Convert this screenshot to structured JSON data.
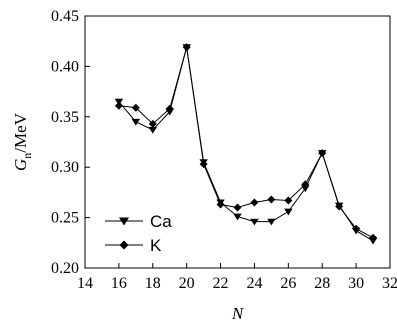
{
  "chart_data": {
    "type": "line",
    "x": [
      16,
      17,
      18,
      19,
      20,
      21,
      22,
      23,
      24,
      25,
      26,
      27,
      28,
      29,
      30,
      31
    ],
    "series": [
      {
        "name": "Ca",
        "marker": "triangle-down",
        "values": [
          0.365,
          0.345,
          0.337,
          0.355,
          0.419,
          0.305,
          0.265,
          0.251,
          0.246,
          0.246,
          0.256,
          0.279,
          0.314,
          0.262,
          0.237,
          0.227
        ]
      },
      {
        "name": "K",
        "marker": "diamond",
        "values": [
          0.361,
          0.359,
          0.343,
          0.358,
          0.419,
          0.303,
          0.263,
          0.26,
          0.265,
          0.268,
          0.267,
          0.283,
          0.314,
          0.261,
          0.239,
          0.23
        ]
      }
    ],
    "xlabel": "N",
    "ylabel_main": "G",
    "ylabel_sub": "n",
    "ylabel_unit": "/MeV",
    "xlim": [
      14,
      32
    ],
    "ylim": [
      0.2,
      0.45
    ],
    "xticks": [
      "14",
      "16",
      "18",
      "20",
      "22",
      "24",
      "26",
      "28",
      "30",
      "32"
    ],
    "yticks": [
      "0.20",
      "0.25",
      "0.30",
      "0.35",
      "0.40",
      "0.45"
    ],
    "grid": false,
    "legend_position": "bottom-left",
    "color": "#000000"
  }
}
